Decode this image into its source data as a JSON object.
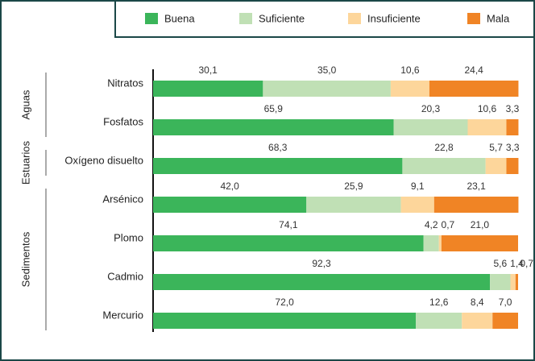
{
  "chart_data": {
    "type": "stacked_bar_horizontal",
    "groups": [
      {
        "name": "Aguas",
        "categories": [
          "Nitratos",
          "Fosfatos"
        ]
      },
      {
        "name": "Estuarios",
        "categories": [
          "Oxígeno disuelto"
        ]
      },
      {
        "name": "Sedimentos",
        "categories": [
          "Arsénico",
          "Plomo",
          "Cadmio",
          "Mercurio"
        ]
      }
    ],
    "xlim": [
      0,
      100
    ],
    "legend": "top-right",
    "series": [
      {
        "name": "Buena",
        "color": "#3bb55a",
        "values": [
          30.1,
          65.9,
          68.3,
          42.0,
          74.1,
          92.3,
          72.0
        ],
        "value_labels": [
          "30,1",
          "65,9",
          "68,3",
          "42,0",
          "74,1",
          "92,3",
          "72,0"
        ]
      },
      {
        "name": "Suficiente",
        "color": "#c0e0b5",
        "values": [
          35.0,
          20.3,
          22.8,
          25.9,
          4.2,
          5.6,
          12.6
        ],
        "value_labels": [
          "35,0",
          "20,3",
          "22,8",
          "25,9",
          "4,2",
          "5,6",
          "12,6"
        ]
      },
      {
        "name": "Insuficiente",
        "color": "#fdd69b",
        "values": [
          10.6,
          10.6,
          5.7,
          9.1,
          0.7,
          1.4,
          8.4
        ],
        "value_labels": [
          "10,6",
          "10,6",
          "5,7",
          "9,1",
          "0,7",
          "1,4",
          "8,4"
        ]
      },
      {
        "name": "Mala",
        "color": "#f08425",
        "values": [
          24.4,
          3.3,
          3.3,
          23.1,
          21.0,
          0.7,
          7.0
        ],
        "value_labels": [
          "24,4",
          "3,3",
          "3,3",
          "23,1",
          "21,0",
          "0,7",
          "7,0"
        ]
      }
    ]
  }
}
